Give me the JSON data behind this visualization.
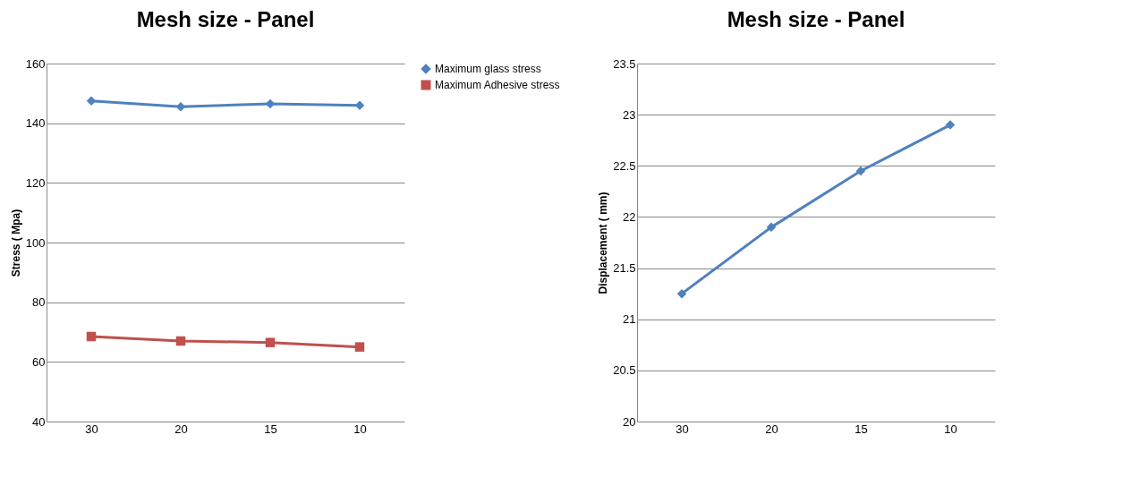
{
  "chart_data": [
    {
      "type": "line",
      "title": "Mesh size - Panel",
      "ylabel": "Stress ( Mpa)",
      "categories": [
        "30",
        "20",
        "15",
        "10"
      ],
      "ylim": [
        40,
        160
      ],
      "yticks": [
        40,
        60,
        80,
        100,
        120,
        140,
        160
      ],
      "grid": "y",
      "legend": "right",
      "series": [
        {
          "name": "Maximum glass stress",
          "color": "#4f81bd",
          "marker": "diamond",
          "values": [
            147.5,
            145.5,
            146.5,
            146
          ]
        },
        {
          "name": "Maximum Adhesive stress",
          "color": "#c0504d",
          "marker": "square",
          "values": [
            68.5,
            67,
            66.5,
            65
          ]
        }
      ]
    },
    {
      "type": "line",
      "title": "Mesh size - Panel",
      "ylabel": "Displacement ( mm)",
      "categories": [
        "30",
        "20",
        "15",
        "10"
      ],
      "ylim": [
        20,
        23.5
      ],
      "yticks": [
        20,
        20.5,
        21,
        21.5,
        22,
        22.5,
        23,
        23.5
      ],
      "grid": "y",
      "legend": false,
      "series": [
        {
          "color": "#4f81bd",
          "marker": "diamond",
          "values": [
            21.25,
            21.9,
            22.45,
            22.9
          ]
        }
      ]
    }
  ]
}
